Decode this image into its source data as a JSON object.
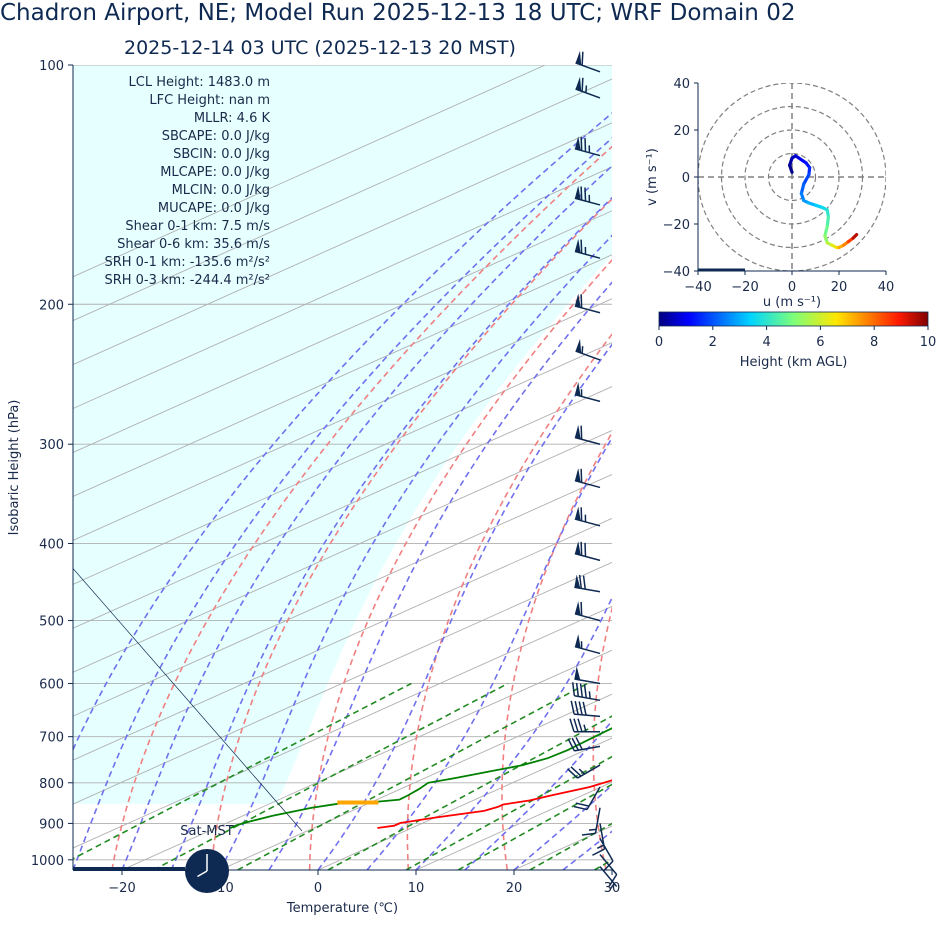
{
  "header": {
    "title": "Chadron Airport, NE; Model Run 2025-12-13 18 UTC; WRF Domain 02",
    "subtitle": "2025-12-14 03 UTC  (2025-12-13 20 MST)"
  },
  "stats": [
    "LCL Height: 1483.0 m",
    "LFC Height: nan m",
    "MLLR: 4.6 K",
    "SBCAPE: 0.0 J/kg",
    "SBCIN: 0.0 J/kg",
    "MLCAPE: 0.0 J/kg",
    "MLCIN: 0.0 J/kg",
    "MUCAPE: 0.0 J/kg",
    "Shear 0-1 km: 7.5 m/s",
    "Shear 0-6 km: 35.6 m/s",
    "SRH 0-1 km: -135.6 m²/s²",
    "SRH 0-3 km: -244.4 m²/s²"
  ],
  "clock": {
    "label": "Sat-MST",
    "hour": 20,
    "minute": 0
  },
  "colors": {
    "temperature": "#ff0000",
    "dewpoint": "#008000",
    "dry_adiabat": "#f08080",
    "moist_adiabat": "#7070ee",
    "mixing_ratio": "#228b22",
    "cape_fill": "#e6ffff",
    "barb": "#0f2a52",
    "lcl_marker": "#ffa500"
  },
  "chart_data": [
    {
      "type": "line",
      "kind": "skew-T log-P sounding",
      "xlabel": "Temperature (℃)",
      "ylabel": "Isobaric Height (hPa)",
      "xlim": [
        -25,
        30
      ],
      "ylim": [
        1030,
        100
      ],
      "y_scale": "log",
      "x_ticks": [
        -20,
        -10,
        0,
        10,
        20,
        30
      ],
      "x_tick_labels": [
        "−20",
        "−10",
        "0",
        "10",
        "20",
        "30"
      ],
      "y_ticks": [
        100,
        200,
        300,
        400,
        500,
        600,
        700,
        800,
        900,
        1000
      ],
      "grid": true,
      "lcl_pressure": 847,
      "series": [
        {
          "key": "temperature",
          "pressure": [
            912,
            906,
            899,
            885,
            868,
            858,
            852,
            842,
            830,
            810,
            790,
            775,
            755,
            730,
            700,
            665,
            640,
            615,
            590,
            565,
            540,
            515,
            490,
            450,
            400,
            350,
            300,
            250,
            220,
            195,
            170,
            155,
            140,
            128,
            118,
            108,
            100
          ],
          "values": [
            -3.5,
            -2.3,
            -2.3,
            0,
            3.5,
            4,
            4,
            5.8,
            6.8,
            8.8,
            9.8,
            10.2,
            10.3,
            10,
            9,
            8.8,
            9.3,
            10,
            10.6,
            10.8,
            10.6,
            10.1,
            9.1,
            7.4,
            4,
            0.2,
            -5,
            -11.6,
            -16.5,
            -20.5,
            -24.5,
            -25.5,
            -26.8,
            -28.5,
            -30.2,
            -33.5,
            -36.5
          ]
        },
        {
          "key": "dewpoint",
          "pressure": [
            912,
            905,
            895,
            880,
            860,
            850,
            845,
            840,
            830,
            815,
            800,
            790,
            775,
            760,
            745,
            728,
            700,
            660,
            630,
            600,
            570,
            540,
            500,
            450,
            400,
            350,
            300,
            250,
            220,
            200,
            180,
            165,
            150,
            135,
            120,
            108,
            100
          ],
          "values": [
            -18.5,
            -18.5,
            -18,
            -17,
            -14.8,
            -13,
            -9.5,
            -7.7,
            -7.8,
            -8.1,
            -8.6,
            -7,
            -5,
            -3,
            -2,
            -1.8,
            -2.1,
            -2.5,
            -3.9,
            -6.2,
            -8.5,
            -10.5,
            -12.9,
            -16.5,
            -22.2,
            -28,
            -34.5,
            -38.5,
            -40.5,
            -42.3,
            -44.5,
            -46.5,
            -48.2,
            -49.5,
            -51.2,
            -52.7,
            -53.5
          ]
        }
      ],
      "wind_barbs": {
        "units": "kt",
        "levels": [
          {
            "pressure": 102,
            "dir": 290,
            "speed": 60
          },
          {
            "pressure": 110,
            "dir": 290,
            "speed": 65
          },
          {
            "pressure": 130,
            "dir": 285,
            "speed": 75
          },
          {
            "pressure": 150,
            "dir": 285,
            "speed": 75
          },
          {
            "pressure": 175,
            "dir": 285,
            "speed": 65
          },
          {
            "pressure": 205,
            "dir": 285,
            "speed": 60
          },
          {
            "pressure": 235,
            "dir": 290,
            "speed": 55
          },
          {
            "pressure": 265,
            "dir": 285,
            "speed": 55
          },
          {
            "pressure": 300,
            "dir": 285,
            "speed": 60
          },
          {
            "pressure": 340,
            "dir": 285,
            "speed": 60
          },
          {
            "pressure": 380,
            "dir": 285,
            "speed": 65
          },
          {
            "pressure": 420,
            "dir": 285,
            "speed": 70
          },
          {
            "pressure": 460,
            "dir": 280,
            "speed": 70
          },
          {
            "pressure": 500,
            "dir": 285,
            "speed": 60
          },
          {
            "pressure": 550,
            "dir": 285,
            "speed": 55
          },
          {
            "pressure": 600,
            "dir": 280,
            "speed": 50
          },
          {
            "pressure": 630,
            "dir": 280,
            "speed": 45
          },
          {
            "pressure": 660,
            "dir": 275,
            "speed": 40
          },
          {
            "pressure": 690,
            "dir": 270,
            "speed": 35
          },
          {
            "pressure": 720,
            "dir": 260,
            "speed": 30
          },
          {
            "pressure": 760,
            "dir": 240,
            "speed": 25
          },
          {
            "pressure": 810,
            "dir": 210,
            "speed": 20
          },
          {
            "pressure": 860,
            "dir": 190,
            "speed": 15
          },
          {
            "pressure": 900,
            "dir": 170,
            "speed": 15
          },
          {
            "pressure": 940,
            "dir": 150,
            "speed": 10
          },
          {
            "pressure": 985,
            "dir": 140,
            "speed": 10
          },
          {
            "pressure": 1020,
            "dir": 140,
            "speed": 5
          }
        ]
      }
    },
    {
      "type": "line",
      "kind": "hodograph",
      "xlabel": "u (m s⁻¹)",
      "ylabel": "v (m s⁻¹)",
      "xlim": [
        -40,
        40
      ],
      "ylim": [
        -40,
        40
      ],
      "x_ticks": [
        -40,
        -20,
        0,
        20,
        40
      ],
      "x_tick_labels": [
        "−40",
        "−20",
        "0",
        "20",
        "40"
      ],
      "y_ticks": [
        40,
        20,
        0,
        -20,
        -40
      ],
      "y_tick_labels": [
        "40",
        "20",
        "0",
        "−20",
        "−40"
      ],
      "rings": [
        10,
        20,
        30,
        40
      ],
      "series": [
        {
          "name": "",
          "u": [
            0,
            -1,
            0,
            1.5,
            3,
            4.5,
            6,
            7.5,
            7.2,
            5,
            4,
            5,
            7,
            10,
            13,
            15,
            15.5,
            15,
            14,
            15,
            17,
            19,
            20,
            22,
            24,
            26,
            27.5
          ],
          "v": [
            2,
            5,
            8,
            9,
            8,
            7,
            6,
            4,
            1,
            -3,
            -7,
            -10,
            -11,
            -12,
            -13,
            -14,
            -17,
            -21,
            -25,
            -28,
            -29,
            -30,
            -30,
            -29,
            -27.5,
            -26,
            -24.5
          ],
          "height_km": [
            0,
            0.2,
            0.4,
            0.6,
            0.8,
            1,
            1.2,
            1.4,
            1.7,
            2,
            2.3,
            2.6,
            2.9,
            3.2,
            3.5,
            3.8,
            4.2,
            4.6,
            5,
            5.5,
            6,
            6.5,
            7,
            7.5,
            8,
            9,
            10
          ]
        }
      ],
      "colorbar": {
        "label": "Height (km AGL)",
        "range": [
          0,
          10
        ],
        "ticks": [
          "0",
          "2",
          "4",
          "6",
          "8",
          "10"
        ],
        "colormap": "jet"
      }
    }
  ]
}
